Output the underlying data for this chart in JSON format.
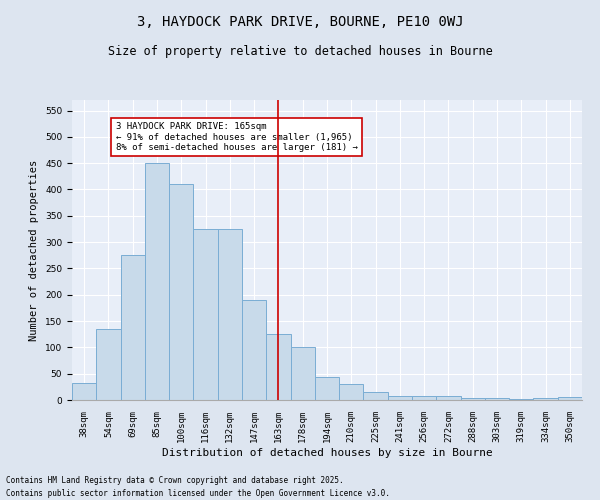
{
  "title1": "3, HAYDOCK PARK DRIVE, BOURNE, PE10 0WJ",
  "title2": "Size of property relative to detached houses in Bourne",
  "xlabel": "Distribution of detached houses by size in Bourne",
  "ylabel": "Number of detached properties",
  "categories": [
    "38sqm",
    "54sqm",
    "69sqm",
    "85sqm",
    "100sqm",
    "116sqm",
    "132sqm",
    "147sqm",
    "163sqm",
    "178sqm",
    "194sqm",
    "210sqm",
    "225sqm",
    "241sqm",
    "256sqm",
    "272sqm",
    "288sqm",
    "303sqm",
    "319sqm",
    "334sqm",
    "350sqm"
  ],
  "values": [
    33,
    135,
    275,
    450,
    410,
    325,
    325,
    190,
    125,
    100,
    44,
    30,
    16,
    8,
    8,
    8,
    4,
    4,
    2,
    4,
    6
  ],
  "bar_color": "#c8daea",
  "bar_edge_color": "#7aadd4",
  "vline_x": 8,
  "vline_color": "#cc0000",
  "annotation_text": "3 HAYDOCK PARK DRIVE: 165sqm\n← 91% of detached houses are smaller (1,965)\n8% of semi-detached houses are larger (181) →",
  "annotation_box_color": "#ffffff",
  "annotation_box_edge_color": "#cc0000",
  "ylim": [
    0,
    570
  ],
  "yticks": [
    0,
    50,
    100,
    150,
    200,
    250,
    300,
    350,
    400,
    450,
    500,
    550
  ],
  "footnote1": "Contains HM Land Registry data © Crown copyright and database right 2025.",
  "footnote2": "Contains public sector information licensed under the Open Government Licence v3.0.",
  "background_color": "#dde5f0",
  "plot_background_color": "#e8eef8",
  "grid_color": "#ffffff",
  "title1_fontsize": 10,
  "title2_fontsize": 8.5,
  "xlabel_fontsize": 8,
  "ylabel_fontsize": 7.5,
  "tick_fontsize": 6.5,
  "annot_fontsize": 6.5,
  "footnote_fontsize": 5.5
}
